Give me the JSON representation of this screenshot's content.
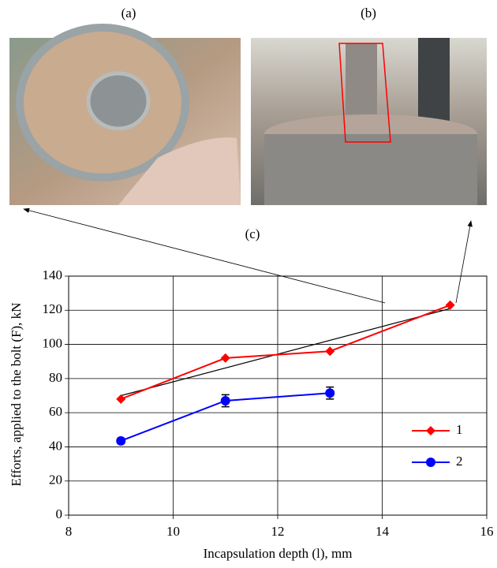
{
  "chart_data": {
    "type": "line",
    "panel_labels": [
      "(a)",
      "(b)",
      "(c)"
    ],
    "xlabel": "Incapsulation depth (l), mm",
    "ylabel": "Efforts, applied to the bolt  (F), kN",
    "xlim": [
      8,
      16
    ],
    "xticks": [
      8,
      10,
      12,
      14,
      16
    ],
    "ylim": [
      0,
      140
    ],
    "yticks": [
      0,
      20,
      40,
      60,
      80,
      100,
      120,
      140
    ],
    "grid": true,
    "legend": "lower right",
    "series": [
      {
        "name": "1",
        "color": "#ff0000",
        "marker": "diamond",
        "x": [
          9,
          11,
          13,
          15.3
        ],
        "values": [
          68,
          92,
          96,
          123
        ]
      },
      {
        "name": "2",
        "color": "#0000ff",
        "marker": "circle",
        "x": [
          9,
          11,
          13
        ],
        "values": [
          43.5,
          67,
          71.5
        ],
        "errors": [
          1.5,
          3.5,
          3.5
        ]
      }
    ],
    "trend": {
      "color": "#000000",
      "x": [
        9,
        15.3
      ],
      "values": [
        70,
        121
      ]
    }
  }
}
